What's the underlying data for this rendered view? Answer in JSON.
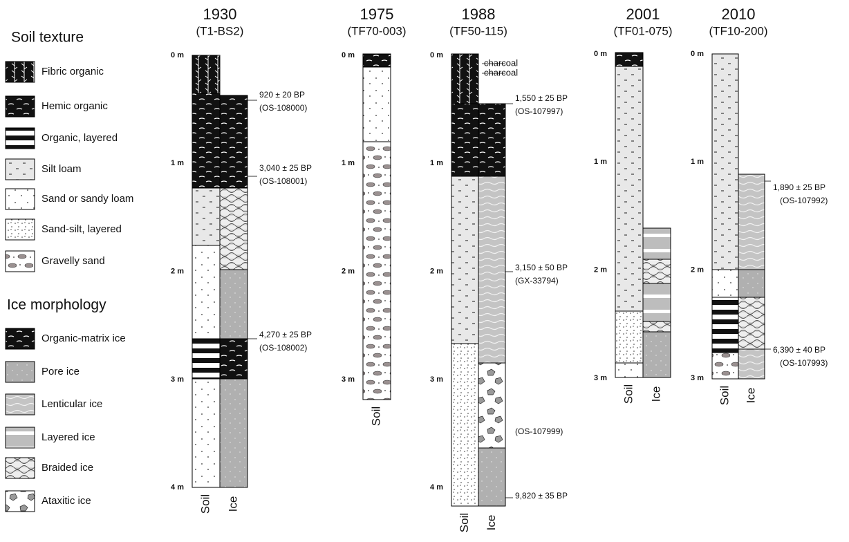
{
  "legend": {
    "soil_title": "Soil texture",
    "soil_items": [
      "Fibric organic",
      "Hemic organic",
      "Organic, layered",
      "Silt loam",
      "Sand or sandy loam",
      "Sand-silt, layered",
      "Gravelly sand"
    ],
    "ice_title": "Ice morphology",
    "ice_items": [
      "Organic-matrix ice",
      "Pore ice",
      "Lenticular ice",
      "Layered ice",
      "Braided ice",
      "Ataxitic ice"
    ]
  },
  "profiles": [
    {
      "year": "1930",
      "site": "(T1-BS2)",
      "depth_labels": [
        "0 m",
        "1 m",
        "2 m",
        "3 m",
        "4 m"
      ],
      "column_labels": [
        "Soil",
        "Ice"
      ],
      "annotations": [
        [
          "920 ± 20 BP",
          "(OS-108000)"
        ],
        [
          "3,040 ± 25 BP",
          "(OS-108001)"
        ],
        [
          "4,270 ± 25 BP",
          "(OS-108002)"
        ]
      ]
    },
    {
      "year": "1975",
      "site": "(TF70-003)",
      "depth_labels": [
        "0 m",
        "1 m",
        "2 m",
        "3 m"
      ],
      "column_labels": [
        "Soil"
      ],
      "annotations": []
    },
    {
      "year": "1988",
      "site": "(TF50-115)",
      "depth_labels": [
        "0 m",
        "1 m",
        "2 m",
        "3 m",
        "4 m"
      ],
      "column_labels": [
        "Soil",
        "Ice"
      ],
      "annotations": [
        [
          "charcoal"
        ],
        [
          "charcoal"
        ],
        [
          "1,550 ± 25 BP",
          "(OS-107997)"
        ],
        [
          "3,150 ± 50 BP",
          "(GX-33794)"
        ],
        [
          "(OS-107999)"
        ],
        [
          "9,820 ± 35 BP"
        ]
      ]
    },
    {
      "year": "2001",
      "site": "(TF01-075)",
      "depth_labels": [
        "0 m",
        "1 m",
        "2 m",
        "3 m"
      ],
      "column_labels": [
        "Soil",
        "Ice"
      ],
      "annotations": []
    },
    {
      "year": "2010",
      "site": "(TF10-200)",
      "depth_labels": [
        "0 m",
        "1 m",
        "2 m",
        "3 m"
      ],
      "column_labels": [
        "Soil",
        "Ice"
      ],
      "annotations": [
        [
          "1,890 ± 25 BP",
          "(OS-107992)"
        ],
        [
          "6,390 ± 40 BP",
          "(OS-107993)"
        ]
      ]
    }
  ]
}
